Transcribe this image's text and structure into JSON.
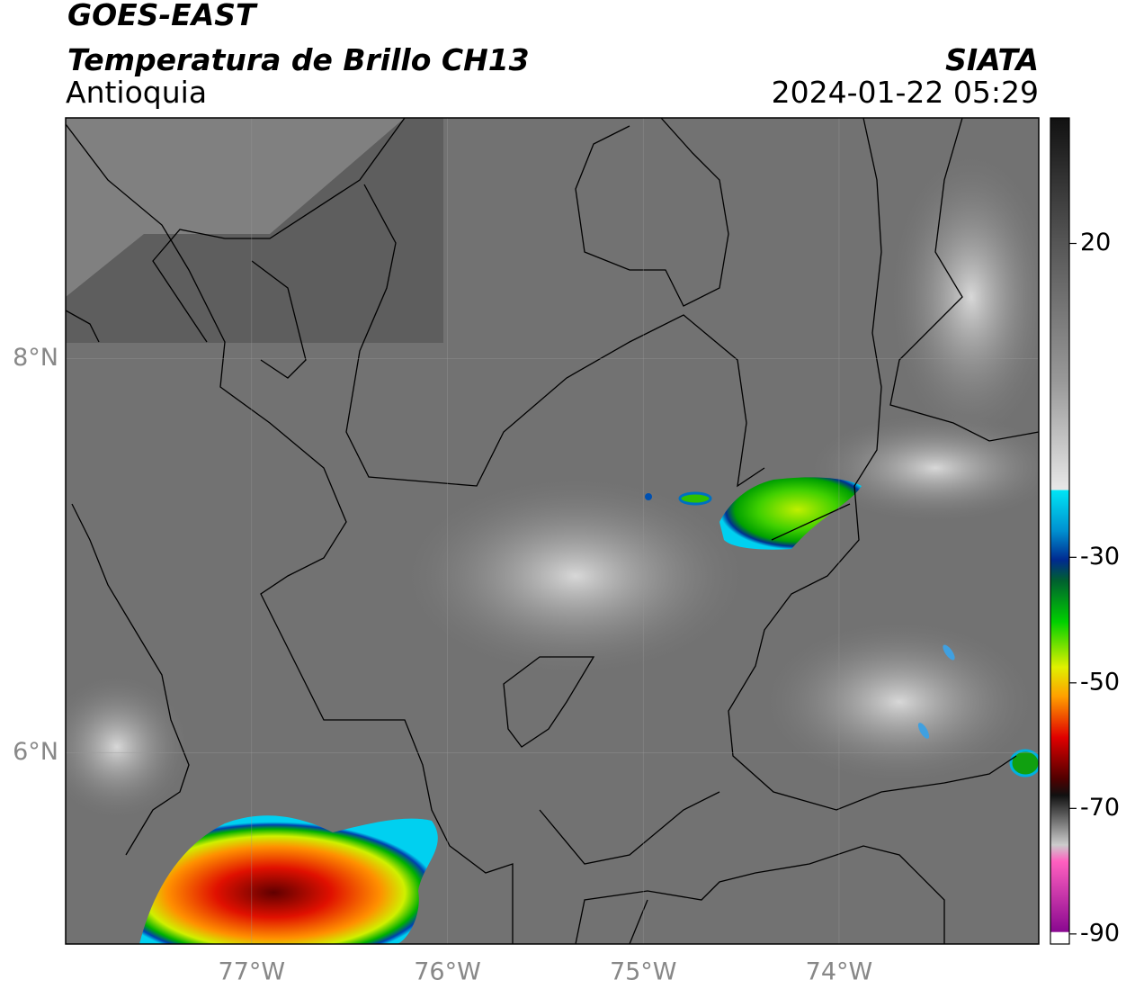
{
  "header": {
    "title": "GOES-EAST",
    "subtitle": "Temperatura de Brillo CH13",
    "region": "Antioquia",
    "source": "SIATA",
    "datetime": "2024-01-22 05:29"
  },
  "map": {
    "xlim": [
      -77.95,
      -72.98
    ],
    "ylim": [
      5.03,
      9.22
    ],
    "xticks": [
      {
        "value": -77,
        "label": "77°W"
      },
      {
        "value": -76,
        "label": "76°W"
      },
      {
        "value": -75,
        "label": "75°W"
      },
      {
        "value": -74,
        "label": "74°W"
      }
    ],
    "yticks": [
      {
        "value": 8,
        "label": "8°N"
      },
      {
        "value": 6,
        "label": "6°N"
      }
    ]
  },
  "colorbar": {
    "lim": [
      -91.6,
      40
    ],
    "ticks": [
      20,
      -30,
      -50,
      -70,
      -90
    ]
  }
}
